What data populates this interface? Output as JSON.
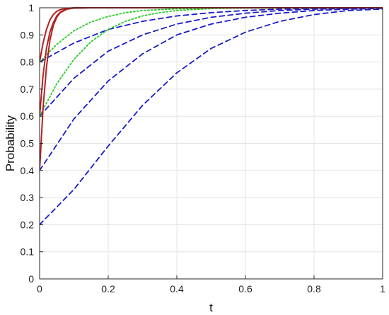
{
  "chart_data": {
    "type": "line",
    "title": "",
    "xlabel": "t",
    "ylabel": "Probability",
    "xlim": [
      0,
      1
    ],
    "ylim": [
      0,
      1
    ],
    "grid": true,
    "legend": "none",
    "x_ticks": [
      0,
      0.2,
      0.4,
      0.6,
      0.8,
      1
    ],
    "x_tick_labels": [
      "0",
      "0.2",
      "0.4",
      "0.6",
      "0.8",
      "1"
    ],
    "y_ticks": [
      0,
      0.1,
      0.2,
      0.3,
      0.4,
      0.5,
      0.6,
      0.7,
      0.8,
      0.9,
      1
    ],
    "y_tick_labels": [
      "0",
      "0.1",
      "0.2",
      "0.3",
      "0.4",
      "0.5",
      "0.6",
      "0.7",
      "0.8",
      "0.9",
      "1"
    ],
    "series": [
      {
        "color": "#b22222",
        "style": "solid",
        "points": [
          [
            0,
            0.4
          ],
          [
            0.01,
            0.63
          ],
          [
            0.02,
            0.78
          ],
          [
            0.03,
            0.88
          ],
          [
            0.04,
            0.935
          ],
          [
            0.05,
            0.965
          ],
          [
            0.06,
            0.982
          ],
          [
            0.08,
            0.995
          ],
          [
            0.1,
            0.999
          ],
          [
            0.15,
            1
          ],
          [
            1,
            1
          ]
        ]
      },
      {
        "color": "#b22222",
        "style": "solid",
        "points": [
          [
            0,
            0.6
          ],
          [
            0.01,
            0.75
          ],
          [
            0.02,
            0.85
          ],
          [
            0.03,
            0.91
          ],
          [
            0.04,
            0.945
          ],
          [
            0.05,
            0.97
          ],
          [
            0.06,
            0.984
          ],
          [
            0.08,
            0.996
          ],
          [
            0.1,
            0.999
          ],
          [
            0.15,
            1
          ],
          [
            1,
            1
          ]
        ]
      },
      {
        "color": "#b22222",
        "style": "solid",
        "points": [
          [
            0,
            0.8
          ],
          [
            0.01,
            0.87
          ],
          [
            0.02,
            0.92
          ],
          [
            0.03,
            0.955
          ],
          [
            0.04,
            0.975
          ],
          [
            0.05,
            0.987
          ],
          [
            0.06,
            0.993
          ],
          [
            0.08,
            0.998
          ],
          [
            0.1,
            1
          ],
          [
            1,
            1
          ]
        ]
      },
      {
        "color": "#22cc22",
        "style": "dotted",
        "points": [
          [
            0,
            0.6
          ],
          [
            0.05,
            0.72
          ],
          [
            0.1,
            0.81
          ],
          [
            0.15,
            0.875
          ],
          [
            0.2,
            0.92
          ],
          [
            0.25,
            0.95
          ],
          [
            0.3,
            0.97
          ],
          [
            0.35,
            0.982
          ],
          [
            0.4,
            0.99
          ],
          [
            0.5,
            0.997
          ],
          [
            0.6,
            0.999
          ],
          [
            1,
            1
          ]
        ]
      },
      {
        "color": "#22cc22",
        "style": "dotted",
        "points": [
          [
            0,
            0.8
          ],
          [
            0.05,
            0.865
          ],
          [
            0.1,
            0.915
          ],
          [
            0.15,
            0.948
          ],
          [
            0.2,
            0.968
          ],
          [
            0.25,
            0.982
          ],
          [
            0.3,
            0.99
          ],
          [
            0.4,
            0.996
          ],
          [
            0.5,
            0.999
          ],
          [
            1,
            1
          ]
        ]
      },
      {
        "color": "#1a1acc",
        "style": "dashed",
        "points": [
          [
            0,
            0.2
          ],
          [
            0.1,
            0.33
          ],
          [
            0.2,
            0.49
          ],
          [
            0.3,
            0.64
          ],
          [
            0.4,
            0.76
          ],
          [
            0.5,
            0.85
          ],
          [
            0.6,
            0.91
          ],
          [
            0.7,
            0.95
          ],
          [
            0.8,
            0.975
          ],
          [
            0.9,
            0.99
          ],
          [
            1,
            0.995
          ]
        ]
      },
      {
        "color": "#1a1acc",
        "style": "dashed",
        "points": [
          [
            0,
            0.4
          ],
          [
            0.1,
            0.59
          ],
          [
            0.2,
            0.73
          ],
          [
            0.3,
            0.83
          ],
          [
            0.4,
            0.9
          ],
          [
            0.5,
            0.94
          ],
          [
            0.6,
            0.965
          ],
          [
            0.7,
            0.98
          ],
          [
            0.8,
            0.99
          ],
          [
            0.9,
            0.995
          ],
          [
            1,
            0.998
          ]
        ]
      },
      {
        "color": "#1a1acc",
        "style": "dashed",
        "points": [
          [
            0,
            0.6
          ],
          [
            0.1,
            0.74
          ],
          [
            0.2,
            0.84
          ],
          [
            0.3,
            0.9
          ],
          [
            0.4,
            0.94
          ],
          [
            0.5,
            0.965
          ],
          [
            0.6,
            0.98
          ],
          [
            0.7,
            0.99
          ],
          [
            0.8,
            0.995
          ],
          [
            0.9,
            0.998
          ],
          [
            1,
            1
          ]
        ]
      },
      {
        "color": "#1a1acc",
        "style": "dashed",
        "points": [
          [
            0,
            0.8
          ],
          [
            0.1,
            0.87
          ],
          [
            0.2,
            0.92
          ],
          [
            0.3,
            0.95
          ],
          [
            0.4,
            0.97
          ],
          [
            0.5,
            0.982
          ],
          [
            0.6,
            0.99
          ],
          [
            0.7,
            0.995
          ],
          [
            0.8,
            0.998
          ],
          [
            0.9,
            0.999
          ],
          [
            1,
            1
          ]
        ]
      }
    ]
  }
}
